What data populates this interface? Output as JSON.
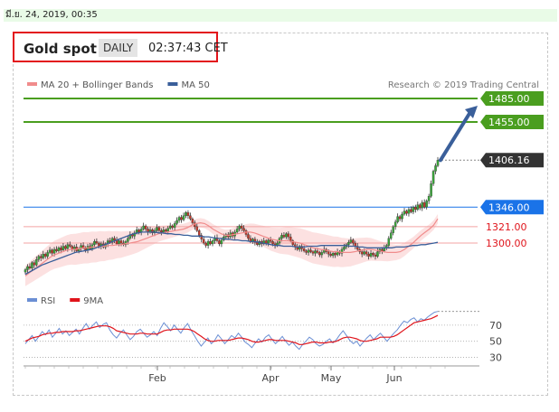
{
  "date_stamp": "มี.ย. 24, 2019, 00:35",
  "header": {
    "title": "Gold spot",
    "period": "DAILY",
    "time": "02:37:43 CET"
  },
  "colors": {
    "ma20": "#f08c8c",
    "ma50": "#3a5f9a",
    "resistance": "#4a9e1f",
    "support": "#1a73e8",
    "price": "#333333",
    "rsi": "#6b8fd4",
    "rsi_ma": "#e0141b",
    "trend_arrow": "#3a5f9a"
  },
  "chart_data": [
    {
      "type": "candlestick",
      "legend": [
        {
          "label": "MA 20 + Bollinger Bands",
          "color": "#f08c8c"
        },
        {
          "label": "MA 50",
          "color": "#3a5f9a"
        }
      ],
      "credit": "Research © 2019 Trading Central",
      "x_ticks": [
        "Feb",
        "Apr",
        "May",
        "Jun"
      ],
      "y_range": [
        1255,
        1500
      ],
      "levels": [
        {
          "label": "1485.00",
          "value": 1485,
          "kind": "resistance"
        },
        {
          "label": "1455.00",
          "value": 1455,
          "kind": "resistance"
        },
        {
          "label": "1406.16",
          "value": 1406.16,
          "kind": "price"
        },
        {
          "label": "1346.00",
          "value": 1346,
          "kind": "support"
        },
        {
          "label": "1321.00",
          "value": 1321,
          "kind": "minor"
        },
        {
          "label": "1300.00",
          "value": 1300,
          "kind": "minor"
        }
      ],
      "closes": [
        1266,
        1270,
        1268,
        1275,
        1272,
        1279,
        1283,
        1281,
        1286,
        1283,
        1288,
        1291,
        1287,
        1292,
        1290,
        1294,
        1291,
        1296,
        1293,
        1298,
        1296,
        1292,
        1295,
        1290,
        1293,
        1297,
        1294,
        1291,
        1296,
        1293,
        1298,
        1302,
        1300,
        1296,
        1299,
        1295,
        1299,
        1303,
        1301,
        1306,
        1304,
        1299,
        1303,
        1300,
        1298,
        1302,
        1306,
        1311,
        1309,
        1313,
        1317,
        1314,
        1318,
        1322,
        1318,
        1314,
        1317,
        1313,
        1316,
        1320,
        1316,
        1314,
        1317,
        1315,
        1319,
        1322,
        1320,
        1325,
        1329,
        1333,
        1330,
        1335,
        1339,
        1335,
        1331,
        1326,
        1321,
        1316,
        1310,
        1305,
        1300,
        1297,
        1302,
        1299,
        1303,
        1307,
        1303,
        1299,
        1304,
        1308,
        1311,
        1308,
        1313,
        1309,
        1314,
        1318,
        1322,
        1319,
        1316,
        1311,
        1306,
        1302,
        1305,
        1301,
        1298,
        1302,
        1299,
        1303,
        1300,
        1304,
        1302,
        1299,
        1297,
        1300,
        1306,
        1310,
        1308,
        1312,
        1308,
        1303,
        1298,
        1295,
        1292,
        1296,
        1293,
        1290,
        1288,
        1291,
        1289,
        1287,
        1290,
        1288,
        1285,
        1288,
        1292,
        1289,
        1286,
        1284,
        1287,
        1285,
        1289,
        1287,
        1292,
        1295,
        1298,
        1301,
        1304,
        1300,
        1296,
        1292,
        1289,
        1286,
        1289,
        1286,
        1283,
        1287,
        1285,
        1283,
        1289,
        1292,
        1290,
        1294,
        1297,
        1306,
        1313,
        1321,
        1327,
        1334,
        1331,
        1337,
        1341,
        1338,
        1343,
        1340,
        1346,
        1343,
        1349,
        1345,
        1352,
        1346,
        1354,
        1360,
        1376,
        1392,
        1399,
        1406
      ],
      "ma20": [
        1258,
        1262,
        1266,
        1270,
        1274,
        1278,
        1282,
        1285,
        1287,
        1289,
        1291,
        1292,
        1292,
        1293,
        1294,
        1294,
        1295,
        1295,
        1296,
        1296,
        1297,
        1297,
        1298,
        1298,
        1299,
        1300,
        1301,
        1302,
        1304,
        1306,
        1308,
        1310,
        1312,
        1313,
        1314,
        1315,
        1316,
        1317,
        1318,
        1320,
        1323,
        1325,
        1326,
        1325,
        1322,
        1318,
        1315,
        1312,
        1310,
        1310,
        1311,
        1312,
        1313,
        1314,
        1314,
        1313,
        1311,
        1309,
        1307,
        1305,
        1304,
        1303,
        1303,
        1303,
        1302,
        1301,
        1300,
        1298,
        1296,
        1294,
        1293,
        1292,
        1291,
        1290,
        1289,
        1289,
        1288,
        1288,
        1288,
        1289,
        1290,
        1291,
        1292,
        1292,
        1291,
        1290,
        1289,
        1288,
        1288,
        1288,
        1289,
        1292,
        1296,
        1300,
        1305,
        1310,
        1314,
        1318,
        1323,
        1331
      ],
      "ma50": [
        1260,
        1263,
        1266,
        1269,
        1272,
        1274,
        1276,
        1278,
        1280,
        1282,
        1284,
        1286,
        1288,
        1289,
        1290,
        1291,
        1292,
        1294,
        1296,
        1298,
        1300,
        1302,
        1304,
        1306,
        1308,
        1310,
        1312,
        1313,
        1314,
        1314,
        1314,
        1314,
        1313,
        1313,
        1312,
        1312,
        1311,
        1311,
        1310,
        1310,
        1309,
        1309,
        1309,
        1308,
        1308,
        1307,
        1306,
        1306,
        1305,
        1305,
        1304,
        1304,
        1303,
        1303,
        1302,
        1302,
        1301,
        1300,
        1299,
        1298,
        1297,
        1297,
        1296,
        1296,
        1296,
        1295,
        1295,
        1295,
        1296,
        1296,
        1296,
        1297,
        1297,
        1297,
        1297,
        1297,
        1297,
        1297,
        1296,
        1296,
        1295,
        1295,
        1294,
        1294,
        1294,
        1294,
        1294,
        1294,
        1294,
        1295,
        1295,
        1295,
        1296,
        1297,
        1297,
        1298,
        1298,
        1299,
        1300,
        1301
      ]
    },
    {
      "type": "line",
      "legend": [
        {
          "label": "RSI",
          "color": "#6b8fd4"
        },
        {
          "label": "9MA",
          "color": "#e0141b"
        }
      ],
      "y_ticks": [
        "70",
        "50",
        "30"
      ],
      "y_range": [
        25,
        90
      ],
      "rsi": [
        47,
        52,
        57,
        50,
        56,
        62,
        58,
        64,
        55,
        60,
        66,
        59,
        63,
        57,
        61,
        65,
        59,
        66,
        72,
        65,
        70,
        74,
        67,
        71,
        73,
        64,
        58,
        54,
        60,
        64,
        58,
        52,
        56,
        62,
        65,
        60,
        55,
        58,
        62,
        57,
        66,
        73,
        68,
        63,
        70,
        65,
        60,
        67,
        72,
        64,
        57,
        50,
        44,
        49,
        54,
        47,
        51,
        58,
        53,
        47,
        52,
        57,
        54,
        60,
        55,
        49,
        46,
        42,
        48,
        53,
        49,
        55,
        58,
        52,
        47,
        51,
        56,
        50,
        45,
        49,
        44,
        40,
        46,
        50,
        55,
        52,
        47,
        44,
        46,
        50,
        53,
        48,
        52,
        58,
        63,
        57,
        51,
        47,
        50,
        44,
        49,
        54,
        58,
        52,
        56,
        60,
        55,
        50,
        55,
        60,
        64,
        70,
        75,
        73,
        77,
        79,
        74,
        78,
        76,
        80,
        83,
        86,
        87
      ],
      "rsi_ma": [
        50,
        52,
        54,
        55,
        56,
        58,
        59,
        60,
        60,
        61,
        61,
        62,
        62,
        62,
        62,
        63,
        63,
        64,
        65,
        66,
        67,
        68,
        69,
        69,
        69,
        68,
        66,
        63,
        62,
        61,
        60,
        59,
        59,
        59,
        60,
        60,
        59,
        59,
        59,
        59,
        61,
        63,
        64,
        64,
        65,
        65,
        65,
        65,
        65,
        64,
        62,
        59,
        56,
        53,
        51,
        50,
        50,
        51,
        51,
        51,
        51,
        52,
        53,
        54,
        54,
        53,
        52,
        50,
        49,
        49,
        50,
        51,
        52,
        52,
        51,
        51,
        51,
        51,
        50,
        49,
        48,
        46,
        46,
        47,
        48,
        49,
        49,
        48,
        48,
        48,
        49,
        49,
        50,
        52,
        54,
        55,
        55,
        54,
        53,
        51,
        50,
        50,
        51,
        52,
        53,
        55,
        55,
        55,
        55,
        56,
        58,
        61,
        64,
        67,
        70,
        73,
        74,
        75,
        76,
        77,
        78,
        80,
        82
      ]
    }
  ]
}
